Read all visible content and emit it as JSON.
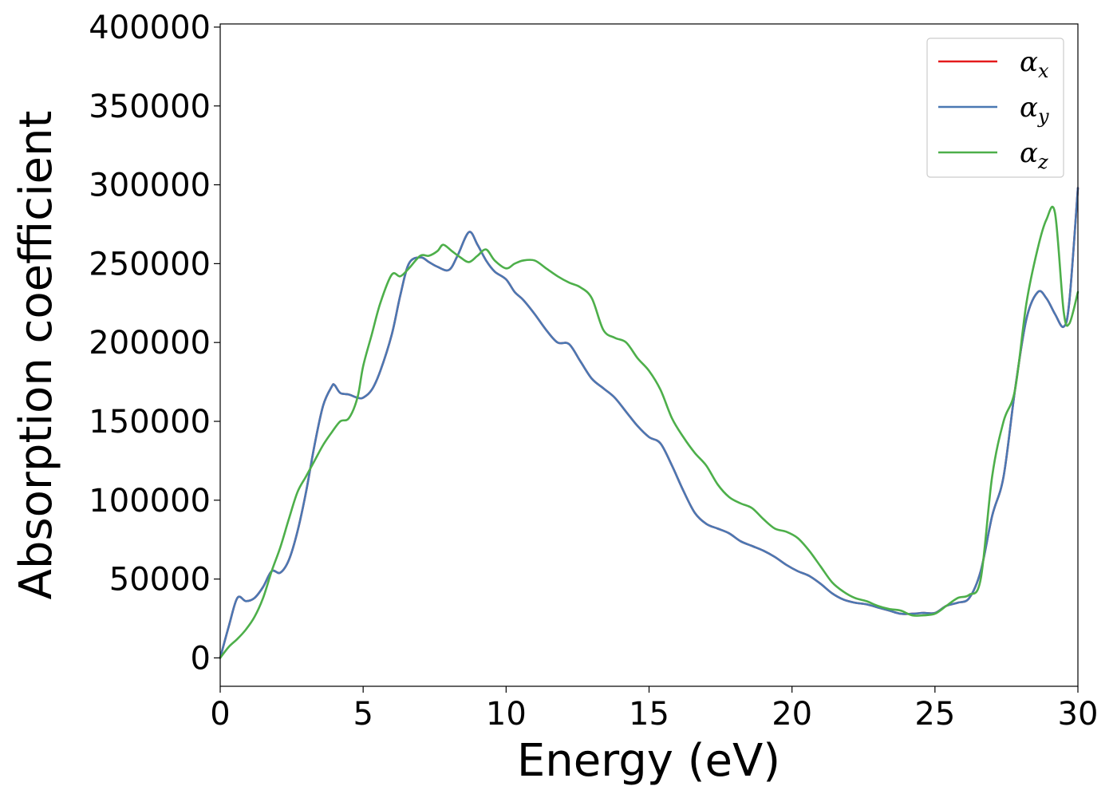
{
  "chart_data": {
    "type": "line",
    "title": "",
    "xlabel": "Energy (eV)",
    "ylabel": "Absorption coefficient",
    "xlim": [
      0,
      30
    ],
    "ylim": [
      -18000,
      402000
    ],
    "xticks": [
      0,
      5,
      10,
      15,
      20,
      25,
      30
    ],
    "yticks": [
      0,
      50000,
      100000,
      150000,
      200000,
      250000,
      300000,
      350000,
      400000
    ],
    "grid": false,
    "legend_position": "top-right",
    "series": [
      {
        "name": "α",
        "subscript": "x",
        "color": "#e41a1c",
        "x": [
          0,
          0.3,
          0.6,
          0.9,
          1.2,
          1.5,
          1.8,
          2.1,
          2.4,
          2.7,
          3.0,
          3.3,
          3.6,
          3.9,
          4.0,
          4.2,
          4.5,
          4.8,
          5.0,
          5.3,
          5.6,
          6.0,
          6.3,
          6.6,
          7.0,
          7.3,
          7.6,
          8.0,
          8.3,
          8.7,
          9.0,
          9.3,
          9.6,
          10.0,
          10.3,
          10.6,
          11.0,
          11.4,
          11.8,
          12.2,
          12.6,
          13.0,
          13.4,
          13.8,
          14.2,
          14.6,
          15.0,
          15.4,
          15.8,
          16.2,
          16.6,
          17.0,
          17.4,
          17.8,
          18.2,
          18.6,
          19.0,
          19.4,
          19.8,
          20.2,
          20.6,
          21.0,
          21.4,
          21.8,
          22.2,
          22.6,
          23.0,
          23.4,
          23.8,
          24.2,
          24.6,
          25.0,
          25.4,
          25.8,
          26.2,
          26.6,
          27.0,
          27.4,
          27.8,
          28.2,
          28.6,
          28.9,
          29.2,
          29.5,
          29.7,
          30.0
        ],
        "values": [
          0,
          20000,
          38000,
          36000,
          38000,
          45000,
          55000,
          54000,
          62000,
          80000,
          105000,
          135000,
          160000,
          172000,
          173000,
          168000,
          167000,
          165000,
          165000,
          170000,
          182000,
          205000,
          230000,
          250000,
          254000,
          251000,
          248000,
          246000,
          255000,
          270000,
          262000,
          252000,
          245000,
          240000,
          232000,
          227000,
          218000,
          208000,
          200000,
          199000,
          188000,
          177000,
          171000,
          165000,
          156000,
          147000,
          140000,
          136000,
          122000,
          106000,
          92000,
          85000,
          82000,
          79000,
          74000,
          71000,
          68000,
          64000,
          59000,
          55000,
          52000,
          47000,
          41000,
          37000,
          35000,
          34000,
          32000,
          30000,
          28000,
          28000,
          28500,
          28500,
          33000,
          35000,
          38000,
          55000,
          90000,
          115000,
          170000,
          215000,
          232000,
          228000,
          218000,
          210000,
          226000,
          298000
        ]
      },
      {
        "name": "α",
        "subscript": "y",
        "color": "#4a78b3",
        "x": [
          0,
          0.3,
          0.6,
          0.9,
          1.2,
          1.5,
          1.8,
          2.1,
          2.4,
          2.7,
          3.0,
          3.3,
          3.6,
          3.9,
          4.0,
          4.2,
          4.5,
          4.8,
          5.0,
          5.3,
          5.6,
          6.0,
          6.3,
          6.6,
          7.0,
          7.3,
          7.6,
          8.0,
          8.3,
          8.7,
          9.0,
          9.3,
          9.6,
          10.0,
          10.3,
          10.6,
          11.0,
          11.4,
          11.8,
          12.2,
          12.6,
          13.0,
          13.4,
          13.8,
          14.2,
          14.6,
          15.0,
          15.4,
          15.8,
          16.2,
          16.6,
          17.0,
          17.4,
          17.8,
          18.2,
          18.6,
          19.0,
          19.4,
          19.8,
          20.2,
          20.6,
          21.0,
          21.4,
          21.8,
          22.2,
          22.6,
          23.0,
          23.4,
          23.8,
          24.2,
          24.6,
          25.0,
          25.4,
          25.8,
          26.2,
          26.6,
          27.0,
          27.4,
          27.8,
          28.2,
          28.6,
          28.9,
          29.2,
          29.5,
          29.7,
          30.0
        ],
        "values": [
          0,
          20000,
          38000,
          36000,
          38000,
          45000,
          55000,
          54000,
          62000,
          80000,
          105000,
          135000,
          160000,
          172000,
          173000,
          168000,
          167000,
          165000,
          165000,
          170000,
          182000,
          205000,
          230000,
          250000,
          254000,
          251000,
          248000,
          246000,
          255000,
          270000,
          262000,
          252000,
          245000,
          240000,
          232000,
          227000,
          218000,
          208000,
          200000,
          199000,
          188000,
          177000,
          171000,
          165000,
          156000,
          147000,
          140000,
          136000,
          122000,
          106000,
          92000,
          85000,
          82000,
          79000,
          74000,
          71000,
          68000,
          64000,
          59000,
          55000,
          52000,
          47000,
          41000,
          37000,
          35000,
          34000,
          32000,
          30000,
          28000,
          28000,
          28500,
          28500,
          33000,
          35000,
          38000,
          55000,
          90000,
          115000,
          170000,
          215000,
          232000,
          228000,
          218000,
          210000,
          226000,
          298000
        ]
      },
      {
        "name": "α",
        "subscript": "z",
        "color": "#4daf4a",
        "x": [
          0,
          0.3,
          0.6,
          0.9,
          1.2,
          1.5,
          1.8,
          2.1,
          2.4,
          2.7,
          3.0,
          3.3,
          3.6,
          3.9,
          4.2,
          4.5,
          4.8,
          5.0,
          5.3,
          5.6,
          6.0,
          6.3,
          6.6,
          7.0,
          7.3,
          7.6,
          7.8,
          8.1,
          8.4,
          8.7,
          9.0,
          9.3,
          9.6,
          10.0,
          10.3,
          10.6,
          11.0,
          11.4,
          11.8,
          12.2,
          12.6,
          13.0,
          13.4,
          13.8,
          14.2,
          14.6,
          15.0,
          15.4,
          15.8,
          16.2,
          16.6,
          17.0,
          17.4,
          17.8,
          18.2,
          18.6,
          19.0,
          19.4,
          19.8,
          20.2,
          20.6,
          21.0,
          21.4,
          21.8,
          22.2,
          22.6,
          23.0,
          23.4,
          23.8,
          24.2,
          24.6,
          25.0,
          25.4,
          25.8,
          26.2,
          26.6,
          27.0,
          27.4,
          27.8,
          28.2,
          28.6,
          28.9,
          29.2,
          29.5,
          29.7,
          30.0
        ],
        "values": [
          0,
          7000,
          12000,
          18000,
          26000,
          38000,
          55000,
          70000,
          88000,
          105000,
          115000,
          125000,
          135000,
          143000,
          150000,
          152000,
          165000,
          185000,
          205000,
          225000,
          243000,
          242000,
          247000,
          255000,
          255000,
          258000,
          262000,
          258000,
          254000,
          251000,
          255000,
          259000,
          252000,
          247000,
          250000,
          252000,
          252000,
          247000,
          242000,
          238000,
          235000,
          228000,
          208000,
          203000,
          200000,
          190000,
          182000,
          170000,
          152000,
          140000,
          130000,
          122000,
          110000,
          102000,
          98000,
          95000,
          88000,
          82000,
          80000,
          76000,
          68000,
          58000,
          48000,
          42000,
          38000,
          36000,
          33000,
          31000,
          30000,
          27000,
          27000,
          28000,
          33000,
          38000,
          40000,
          50000,
          115000,
          150000,
          170000,
          225000,
          260000,
          278000,
          282000,
          220000,
          212000,
          232000
        ]
      }
    ]
  }
}
